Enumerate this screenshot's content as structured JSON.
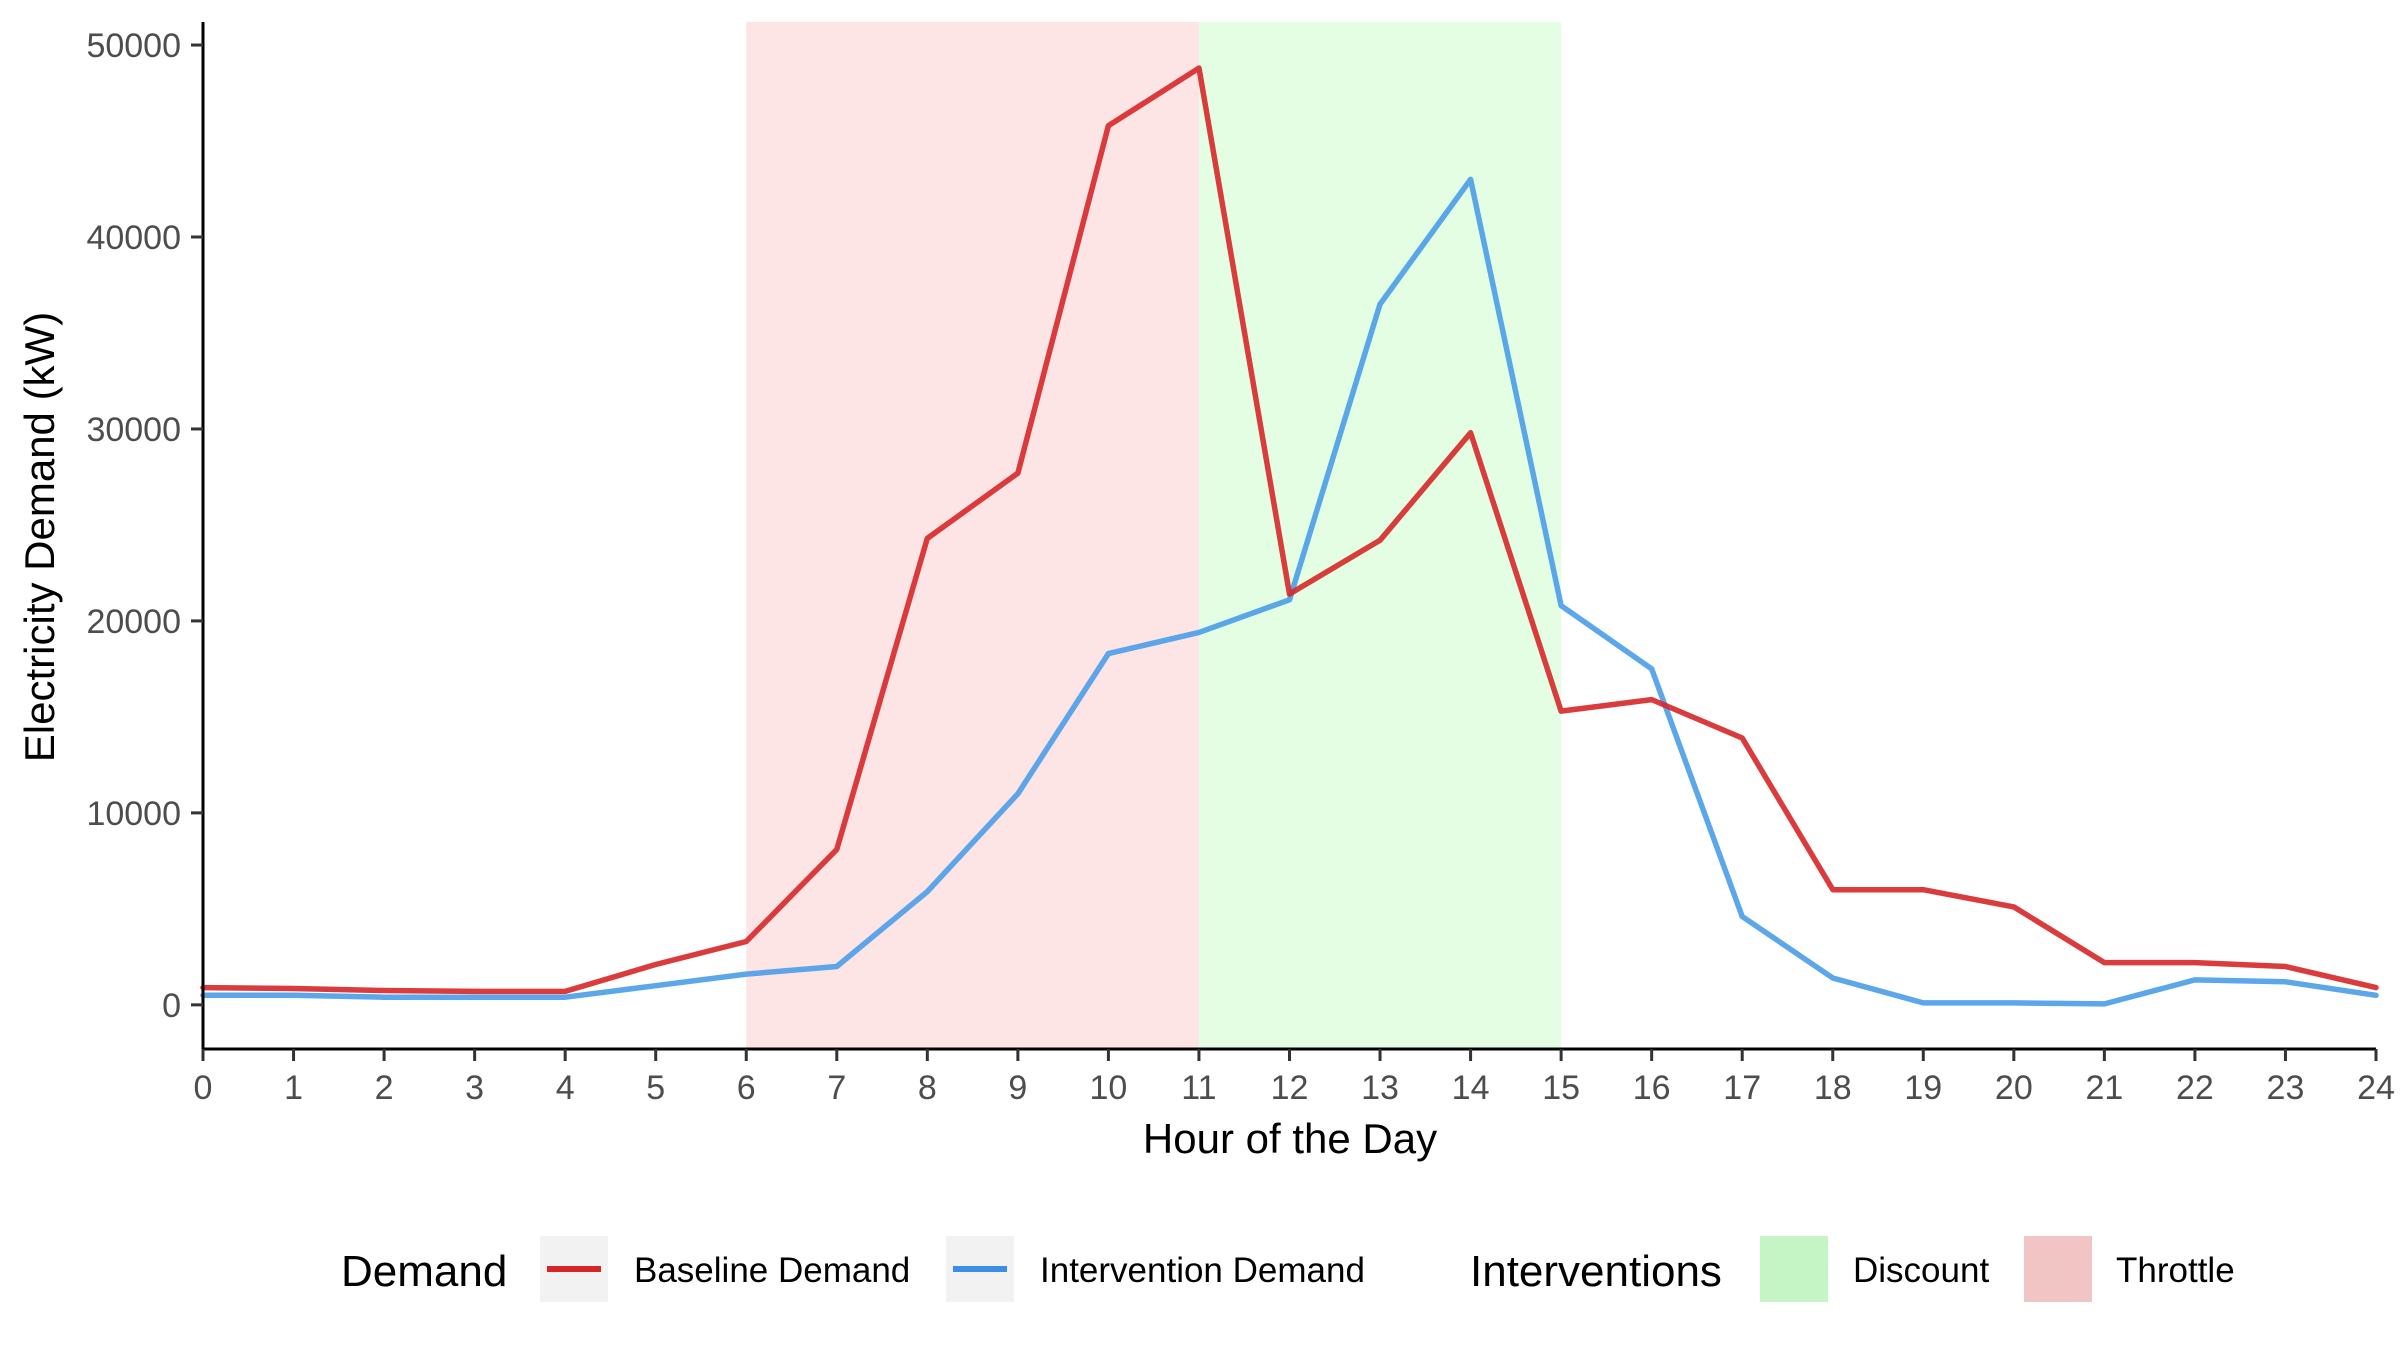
{
  "chart_data": {
    "type": "line",
    "xlabel": "Hour of the Day",
    "ylabel": "Electricity Demand (kW)",
    "xlim": [
      0,
      24
    ],
    "ylim": [
      -2300,
      51200
    ],
    "x_ticks": [
      0,
      1,
      2,
      3,
      4,
      5,
      6,
      7,
      8,
      9,
      10,
      11,
      12,
      13,
      14,
      15,
      16,
      17,
      18,
      19,
      20,
      21,
      22,
      23,
      24
    ],
    "y_ticks": [
      0,
      10000,
      20000,
      30000,
      40000,
      50000
    ],
    "grid": false,
    "legend_position": "bottom",
    "x": [
      0,
      1,
      2,
      3,
      4,
      5,
      6,
      7,
      8,
      9,
      10,
      11,
      12,
      13,
      14,
      15,
      16,
      17,
      18,
      19,
      20,
      21,
      22,
      23,
      24
    ],
    "series": [
      {
        "name": "Baseline Demand",
        "color": "#d62728",
        "values": [
          900,
          850,
          750,
          700,
          700,
          2100,
          3300,
          8100,
          24300,
          27700,
          45800,
          48800,
          21400,
          24200,
          29800,
          15300,
          15900,
          13900,
          6000,
          6000,
          5100,
          2200,
          2200,
          2000,
          900
        ]
      },
      {
        "name": "Intervention Demand",
        "color": "#4a9de8",
        "values": [
          500,
          500,
          400,
          400,
          400,
          1000,
          1600,
          2000,
          5900,
          11000,
          18300,
          19400,
          21100,
          36500,
          43000,
          20800,
          17500,
          4600,
          1400,
          100,
          100,
          50,
          1300,
          1200,
          500
        ]
      }
    ],
    "intervention_bands": [
      {
        "name": "Throttle",
        "start": 6,
        "end": 11,
        "color": "#fde4e5"
      },
      {
        "name": "Discount",
        "start": 11,
        "end": 15,
        "color": "#e4fee4"
      }
    ],
    "legends": [
      {
        "title": "Demand",
        "entries": [
          {
            "label": "Baseline Demand",
            "color": "#d62728"
          },
          {
            "label": "Intervention Demand",
            "color": "#3a8ee6"
          }
        ]
      },
      {
        "title": "Interventions",
        "entries": [
          {
            "label": "Discount",
            "color": "#c5f5c5"
          },
          {
            "label": "Throttle",
            "color": "#f2c5c5"
          }
        ]
      }
    ]
  }
}
